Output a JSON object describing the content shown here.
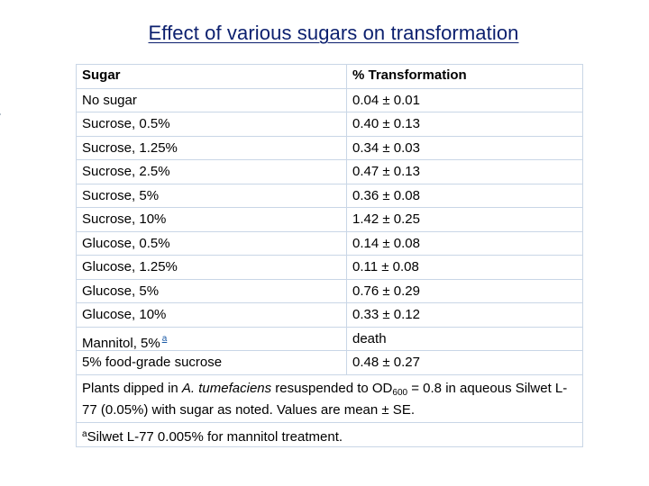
{
  "title": "Effect of various sugars on transformation",
  "table": {
    "headers": [
      "Sugar",
      "% Transformation"
    ],
    "rows": [
      {
        "sugar": "No sugar",
        "value": "0.04 ± 0.01"
      },
      {
        "sugar": "Sucrose, 0.5%",
        "value": "0.40 ± 0.13"
      },
      {
        "sugar": "Sucrose, 1.25%",
        "value": "0.34 ± 0.03"
      },
      {
        "sugar": "Sucrose, 2.5%",
        "value": "0.47 ± 0.13"
      },
      {
        "sugar": "Sucrose, 5%",
        "value": "0.36 ± 0.08"
      },
      {
        "sugar": "Sucrose, 10%",
        "value": "1.42 ± 0.25"
      },
      {
        "sugar": "Glucose, 0.5%",
        "value": "0.14 ± 0.08"
      },
      {
        "sugar": "Glucose, 1.25%",
        "value": "0.11 ± 0.08"
      },
      {
        "sugar": "Glucose, 5%",
        "value": "0.76 ± 0.29"
      },
      {
        "sugar": "Glucose, 10%",
        "value": "0.33 ± 0.12"
      },
      {
        "sugar": "Mannitol, 5%",
        "sugar_footnote_mark": "a",
        "value": "death"
      },
      {
        "sugar": "5% food-grade sucrose",
        "value": "0.48 ± 0.27"
      }
    ]
  },
  "note": {
    "prefix": "Plants dipped in ",
    "species": "A. tumefaciens",
    "middle": " resuspended to OD",
    "subscript": "600",
    "suffix": " = 0.8 in aqueous Silwet L-77 (0.05%) with sugar as noted. Values are mean ± SE."
  },
  "footnote": {
    "mark": "a",
    "text": "Silwet L-77 0.005% for mannitol treatment."
  }
}
